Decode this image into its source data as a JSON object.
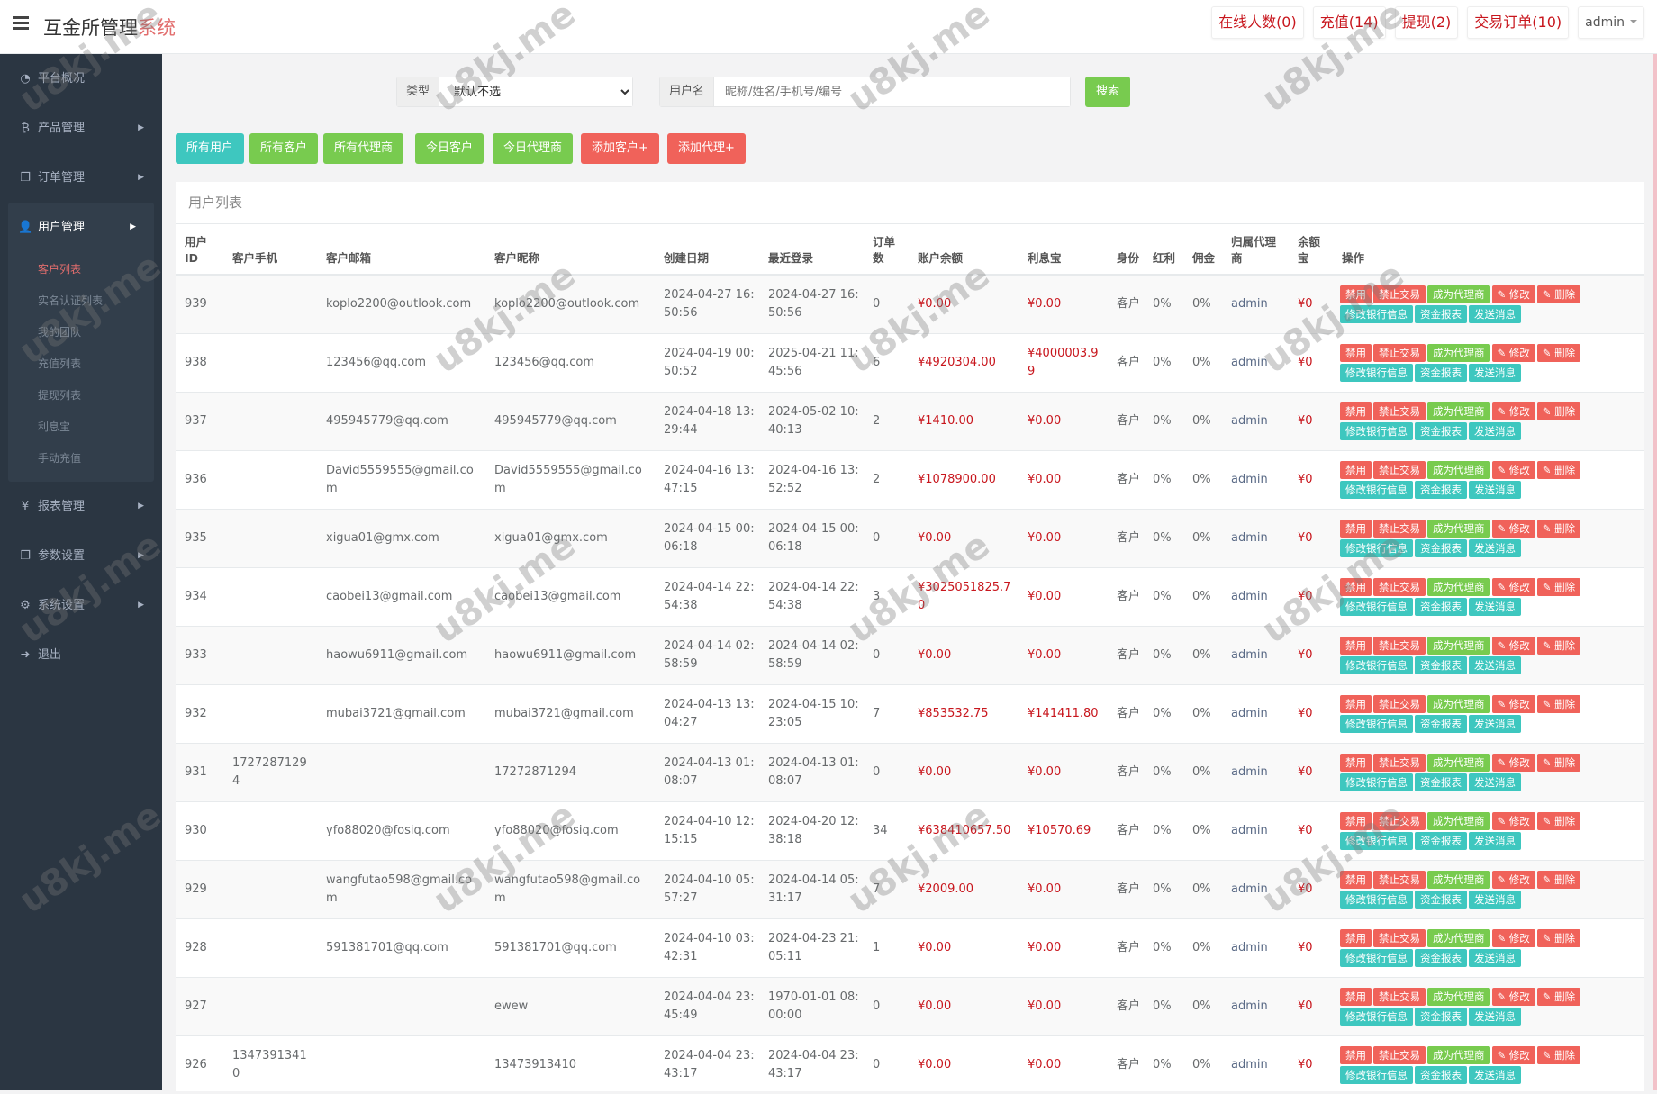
{
  "header": {
    "title_main": "互金所管理",
    "title_accent": "系统",
    "online": "在线人数(0)",
    "recharge": "充值(14)",
    "withdraw": "提现(2)",
    "orders": "交易订单(10)",
    "admin": "admin"
  },
  "sidebar": {
    "items": [
      {
        "label": "平台概况",
        "icon": "dashboard-icon",
        "glyph": "◔"
      },
      {
        "label": "产品管理",
        "icon": "bitcoin-icon",
        "glyph": "₿"
      },
      {
        "label": "订单管理",
        "icon": "copy-icon",
        "glyph": "❐"
      },
      {
        "label": "用户管理",
        "icon": "user-icon",
        "glyph": "👤"
      },
      {
        "label": "报表管理",
        "icon": "yen-icon",
        "glyph": "¥"
      },
      {
        "label": "参数设置",
        "icon": "copy-icon",
        "glyph": "❐"
      },
      {
        "label": "系统设置",
        "icon": "gears-icon",
        "glyph": "⚙"
      },
      {
        "label": "退出",
        "icon": "sign-out-icon",
        "glyph": "➜"
      }
    ],
    "sub": [
      "客户列表",
      "实名认证列表",
      "我的团队",
      "充值列表",
      "提现列表",
      "利息宝",
      "手动充值"
    ]
  },
  "filter": {
    "type_label": "类型",
    "type_value": "默认不选",
    "user_label": "用户名",
    "user_placeholder": "昵称/姓名/手机号/编号",
    "search": "搜索"
  },
  "buttons": [
    "所有用户",
    "所有客户",
    "所有代理商",
    "今日客户",
    "今日代理商",
    "添加客户+",
    "添加代理+"
  ],
  "panel_title": "用户列表",
  "columns": [
    "用户ID",
    "客户手机",
    "客户邮箱",
    "客户昵称",
    "创建日期",
    "最近登录",
    "订单数",
    "账户余额",
    "利息宝",
    "身份",
    "红利",
    "佣金",
    "归属代理商",
    "余额宝",
    "操作"
  ],
  "actions": [
    "禁用",
    "禁止交易",
    "成为代理商",
    "修改",
    "删除",
    "修改银行信息",
    "资金报表",
    "发送消息"
  ],
  "colors": {
    "teal": "#3ec7bf",
    "green": "#78cb4f",
    "red": "#f0625a",
    "money": "#c8161d",
    "sidebar": "#2b3642"
  },
  "watermark": "u8kj.me",
  "rows": [
    [
      "939",
      "",
      "koplo2200@outlook.com",
      "koplo2200@outlook.com",
      "2024-04-27 16:50:56",
      "2024-04-27 16:50:56",
      "0",
      "¥0.00",
      "¥0.00",
      "客户",
      "0%",
      "0%",
      "admin",
      "¥0"
    ],
    [
      "938",
      "",
      "123456@qq.com",
      "123456@qq.com",
      "2024-04-19 00:50:52",
      "2025-04-21 11:45:56",
      "6",
      "¥4920304.00",
      "¥4000003.99",
      "客户",
      "0%",
      "0%",
      "admin",
      "¥0"
    ],
    [
      "937",
      "",
      "495945779@qq.com",
      "495945779@qq.com",
      "2024-04-18 13:29:44",
      "2024-05-02 10:40:13",
      "2",
      "¥1410.00",
      "¥0.00",
      "客户",
      "0%",
      "0%",
      "admin",
      "¥0"
    ],
    [
      "936",
      "",
      "David5559555@gmail.com",
      "David5559555@gmail.com",
      "2024-04-16 13:47:15",
      "2024-04-16 13:52:52",
      "2",
      "¥1078900.00",
      "¥0.00",
      "客户",
      "0%",
      "0%",
      "admin",
      "¥0"
    ],
    [
      "935",
      "",
      "xigua01@gmx.com",
      "xigua01@gmx.com",
      "2024-04-15 00:06:18",
      "2024-04-15 00:06:18",
      "0",
      "¥0.00",
      "¥0.00",
      "客户",
      "0%",
      "0%",
      "admin",
      "¥0"
    ],
    [
      "934",
      "",
      "caobei13@gmail.com",
      "caobei13@gmail.com",
      "2024-04-14 22:54:38",
      "2024-04-14 22:54:38",
      "3",
      "¥3025051825.70",
      "¥0.00",
      "客户",
      "0%",
      "0%",
      "admin",
      "¥0"
    ],
    [
      "933",
      "",
      "haowu6911@gmail.com",
      "haowu6911@gmail.com",
      "2024-04-14 02:58:59",
      "2024-04-14 02:58:59",
      "0",
      "¥0.00",
      "¥0.00",
      "客户",
      "0%",
      "0%",
      "admin",
      "¥0"
    ],
    [
      "932",
      "",
      "mubai3721@gmail.com",
      "mubai3721@gmail.com",
      "2024-04-13 13:04:27",
      "2024-04-15 10:23:05",
      "7",
      "¥853532.75",
      "¥141411.80",
      "客户",
      "0%",
      "0%",
      "admin",
      "¥0"
    ],
    [
      "931",
      "17272871294",
      "",
      "17272871294",
      "2024-04-13 01:08:07",
      "2024-04-13 01:08:07",
      "0",
      "¥0.00",
      "¥0.00",
      "客户",
      "0%",
      "0%",
      "admin",
      "¥0"
    ],
    [
      "930",
      "",
      "yfo88020@fosiq.com",
      "yfo88020@fosiq.com",
      "2024-04-10 12:15:15",
      "2024-04-20 12:38:18",
      "34",
      "¥638410657.50",
      "¥10570.69",
      "客户",
      "0%",
      "0%",
      "admin",
      "¥0"
    ],
    [
      "929",
      "",
      "wangfutao598@gmail.com",
      "wangfutao598@gmail.com",
      "2024-04-10 05:57:27",
      "2024-04-14 05:31:17",
      "7",
      "¥2009.00",
      "¥0.00",
      "客户",
      "0%",
      "0%",
      "admin",
      "¥0"
    ],
    [
      "928",
      "",
      "591381701@qq.com",
      "591381701@qq.com",
      "2024-04-10 03:42:31",
      "2024-04-23 21:05:11",
      "1",
      "¥0.00",
      "¥0.00",
      "客户",
      "0%",
      "0%",
      "admin",
      "¥0"
    ],
    [
      "927",
      "",
      "",
      "ewew",
      "2024-04-04 23:45:49",
      "1970-01-01 08:00:00",
      "0",
      "¥0.00",
      "¥0.00",
      "客户",
      "0%",
      "0%",
      "admin",
      "¥0"
    ],
    [
      "926",
      "13473913410",
      "",
      "13473913410",
      "2024-04-04 23:43:17",
      "2024-04-04 23:43:17",
      "0",
      "¥0.00",
      "¥0.00",
      "客户",
      "0%",
      "0%",
      "admin",
      "¥0"
    ]
  ]
}
